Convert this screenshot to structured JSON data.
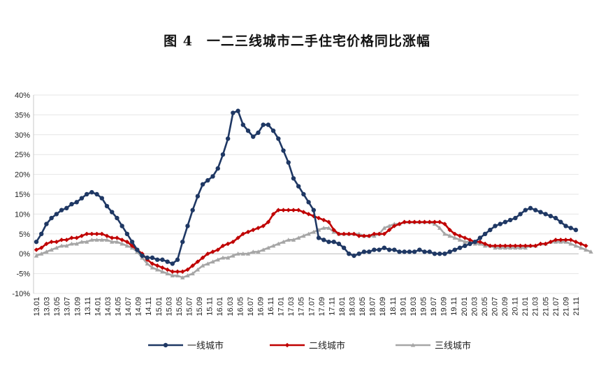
{
  "chart_data": {
    "type": "line",
    "title": "图 4　一二三线城市二手住宅价格同比涨幅",
    "xlabel": "",
    "ylabel": "",
    "ylim": [
      -10,
      40
    ],
    "yticks": [
      "40%",
      "35%",
      "30%",
      "25%",
      "20%",
      "15%",
      "10%",
      "5%",
      "0%",
      "-5%",
      "-10%"
    ],
    "grid": "horizontal",
    "legend_position": "bottom",
    "x_tick_labels": [
      "13.01",
      "13.03",
      "13.05",
      "13.07",
      "13.09",
      "13.11",
      "14.01",
      "14.03",
      "14.05",
      "14.07",
      "14.09",
      "14.11",
      "15.01",
      "15.03",
      "15.05",
      "15.07",
      "15.09",
      "15.11",
      "16.01",
      "16.03",
      "16.05",
      "16.07",
      "16.09",
      "16.11",
      "17.01",
      "17.03",
      "17.05",
      "17.07",
      "17.09",
      "17.11",
      "18.01",
      "18.03",
      "18.05",
      "18.07",
      "18.09",
      "18.11",
      "19.01",
      "19.03",
      "19.05",
      "19.07",
      "19.09",
      "19.11",
      "20.01",
      "20.03",
      "20.05",
      "20.07",
      "20.09",
      "20.11",
      "21.01",
      "21.03",
      "21.05",
      "21.07",
      "21.09",
      "21.11"
    ],
    "series": [
      {
        "name": "一线城市",
        "color": "#1f3864",
        "marker": "circle",
        "values": [
          3,
          5,
          7.5,
          9,
          10,
          11,
          11.5,
          12.5,
          13,
          14,
          15,
          15.5,
          15,
          14,
          12,
          10.5,
          9,
          7,
          5,
          3,
          1,
          -0.5,
          -1,
          -1,
          -1.5,
          -1.5,
          -2,
          -2.5,
          -1.5,
          3,
          7,
          11,
          14.5,
          17.5,
          18.5,
          19.5,
          21.5,
          25,
          29,
          35.5,
          36,
          32.5,
          31,
          29.5,
          30.5,
          32.5,
          32.5,
          31,
          29,
          26,
          23,
          19,
          17,
          15,
          13,
          11,
          4,
          3.5,
          3,
          3,
          2.5,
          1.5,
          0,
          -0.5,
          0,
          0.5,
          0.5,
          1,
          1,
          1.5,
          1,
          1,
          0.5,
          0.5,
          0.5,
          0.5,
          1,
          0.5,
          0.5,
          0,
          0,
          0,
          0.5,
          1,
          1.5,
          2,
          2.5,
          3,
          4,
          5,
          6,
          7,
          7.5,
          8,
          8.5,
          9,
          10,
          11,
          11.5,
          11,
          10.5,
          10,
          9.5,
          9,
          8,
          7,
          6.5,
          6
        ]
      },
      {
        "name": "二线城市",
        "color": "#c00000",
        "marker": "diamond",
        "values": [
          1,
          1.5,
          2.5,
          3,
          3,
          3.5,
          3.5,
          4,
          4,
          4.5,
          5,
          5,
          5,
          5,
          4.5,
          4,
          4,
          3.5,
          3,
          2,
          1,
          0,
          -1.5,
          -2.5,
          -3,
          -3.5,
          -4,
          -4.5,
          -4.5,
          -4.5,
          -4,
          -3,
          -2,
          -1,
          0,
          0.5,
          1,
          2,
          2.5,
          3,
          4,
          5,
          5.5,
          6,
          6.5,
          7,
          8,
          10,
          11,
          11,
          11,
          11,
          11,
          10.5,
          10,
          9.5,
          9,
          8.5,
          8,
          6,
          5,
          5,
          5,
          5,
          4.5,
          4.5,
          4.5,
          5,
          5,
          5,
          6,
          7,
          7.5,
          8,
          8,
          8,
          8,
          8,
          8,
          8,
          8,
          7.5,
          6,
          5,
          4.5,
          4,
          3.5,
          3,
          3,
          2.5,
          2,
          2,
          2,
          2,
          2,
          2,
          2,
          2,
          2,
          2,
          2.5,
          2.5,
          3,
          3.5,
          3.5,
          3.5,
          3.5,
          3,
          2.5,
          2
        ]
      },
      {
        "name": "三线城市",
        "color": "#a6a6a6",
        "marker": "triangle",
        "values": [
          -0.5,
          0,
          0.5,
          1,
          1.5,
          2,
          2,
          2.5,
          2.5,
          3,
          3,
          3.5,
          3.5,
          3.5,
          3.5,
          3,
          3,
          2.5,
          2,
          1.5,
          0.5,
          -1,
          -2.5,
          -3.5,
          -4,
          -4.5,
          -5,
          -5.5,
          -5.5,
          -6,
          -5.5,
          -5,
          -4,
          -3,
          -2.5,
          -2,
          -1.5,
          -1,
          -1,
          -0.5,
          0,
          0,
          0,
          0.5,
          0.5,
          1,
          1.5,
          2,
          2.5,
          3,
          3.5,
          3.5,
          4,
          4.5,
          5,
          5.5,
          6,
          6.5,
          6.5,
          5.5,
          5,
          5,
          5,
          5,
          5,
          4.5,
          4.5,
          4.5,
          5,
          6.5,
          7,
          7.5,
          7.5,
          8,
          8,
          8,
          8,
          8,
          8,
          7.5,
          6.5,
          5,
          4.5,
          4,
          3.5,
          3,
          3,
          2.5,
          2.5,
          2,
          2,
          1.5,
          1.5,
          1.5,
          1.5,
          1.5,
          1.5,
          1.5,
          2,
          2,
          2.5,
          2.5,
          3,
          3,
          3,
          3,
          2.5,
          2,
          1.5,
          1,
          0.5
        ]
      }
    ]
  }
}
